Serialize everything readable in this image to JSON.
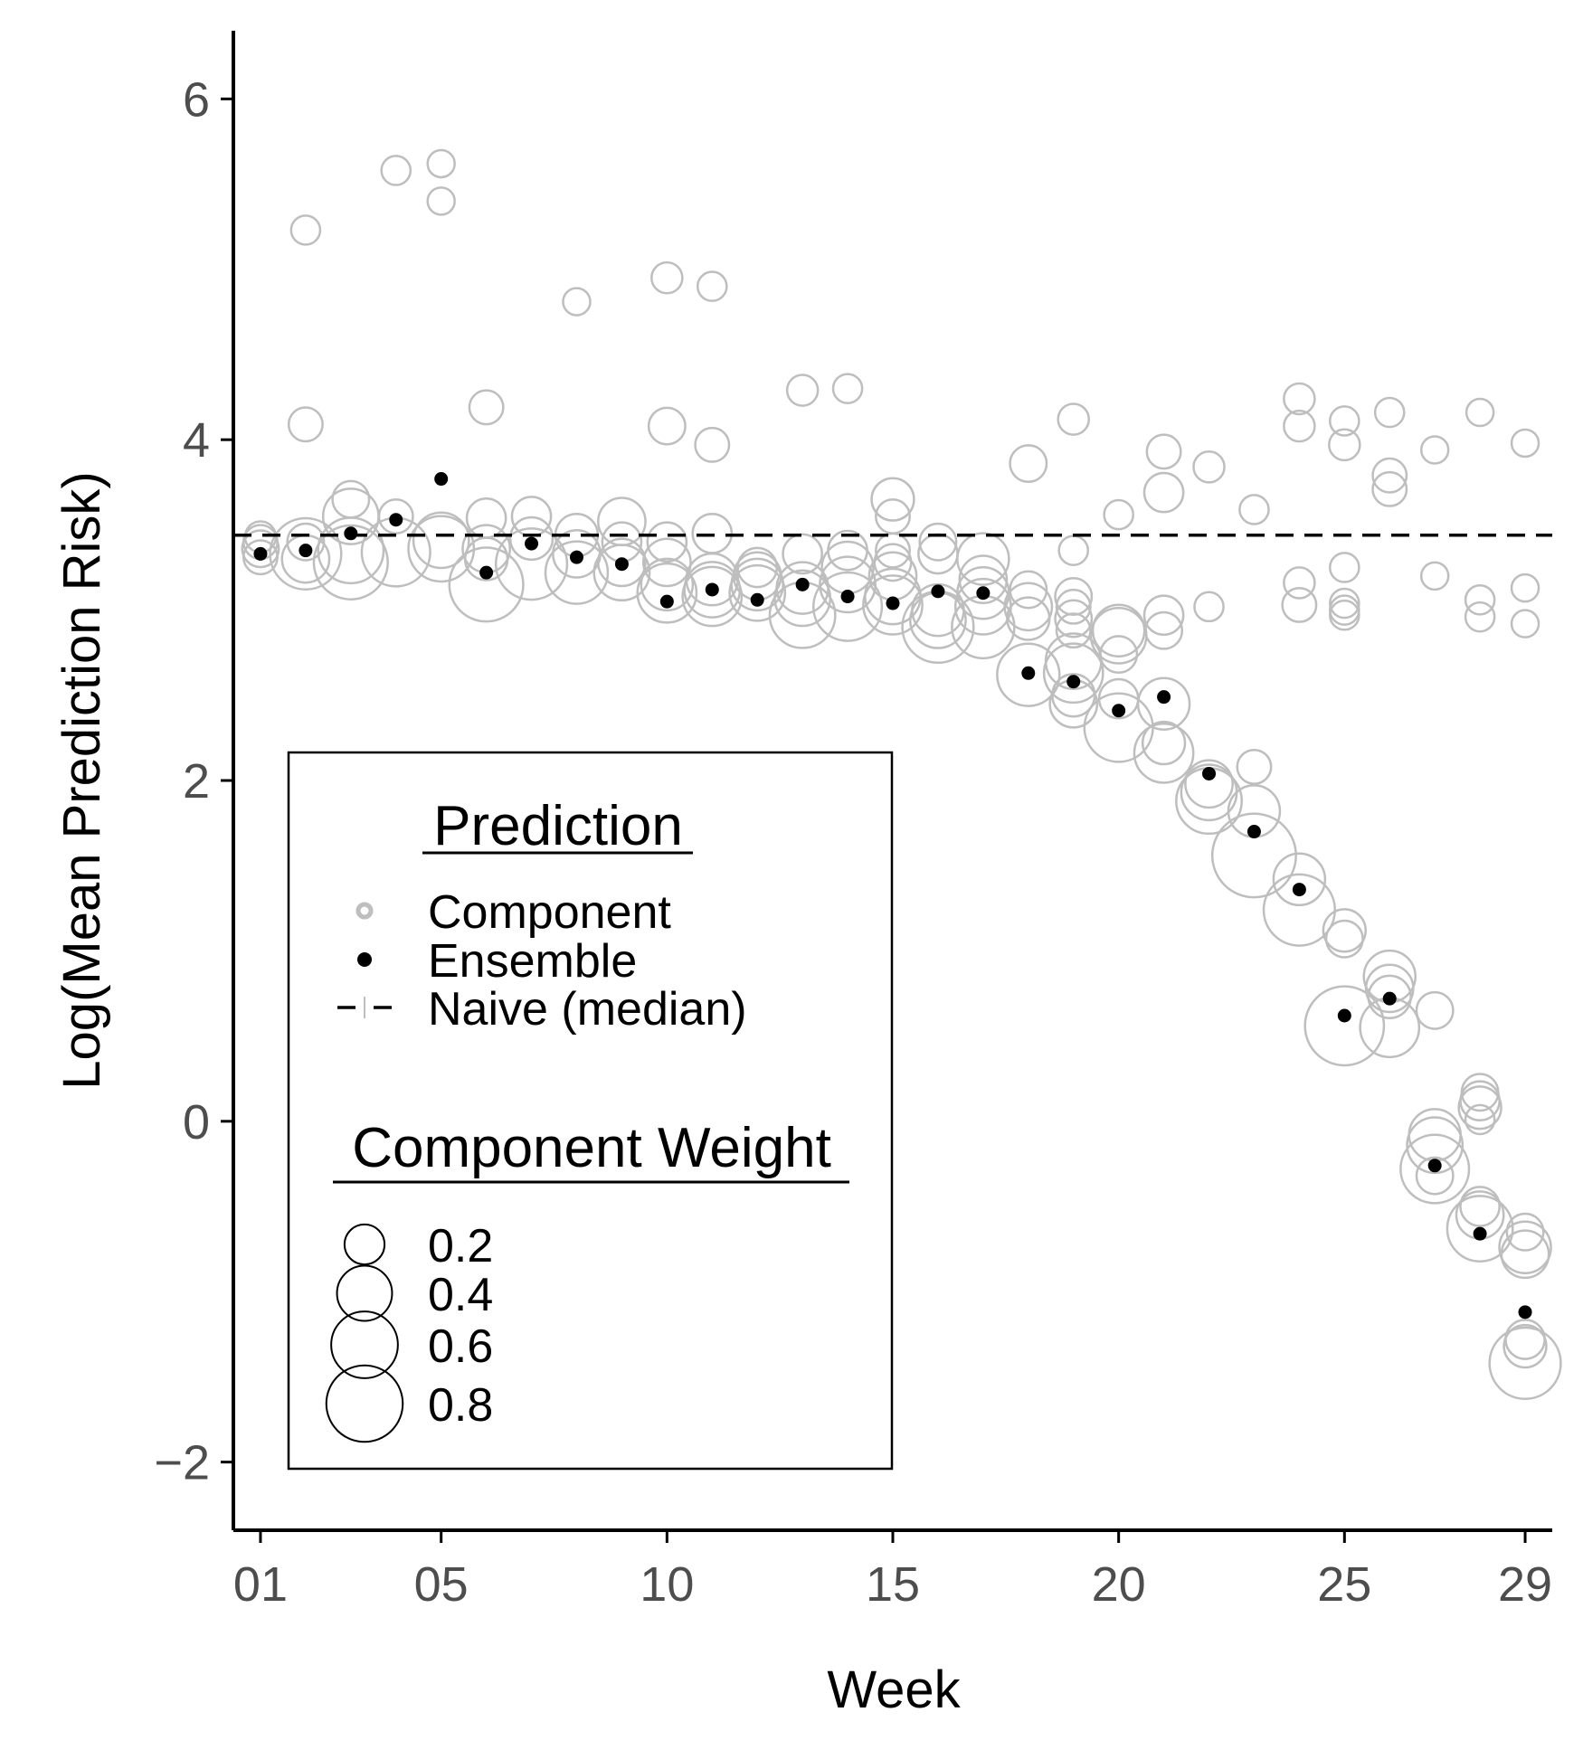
{
  "chart_data": {
    "type": "scatter",
    "xlabel": "Week",
    "ylabel": "Log(Mean Prediction Risk)",
    "xlim": [
      0.4,
      29.6
    ],
    "ylim": [
      -2.4,
      6.4
    ],
    "x_ticks": [
      {
        "value": 1,
        "label": "01"
      },
      {
        "value": 5,
        "label": "05"
      },
      {
        "value": 10,
        "label": "10"
      },
      {
        "value": 15,
        "label": "15"
      },
      {
        "value": 20,
        "label": "20"
      },
      {
        "value": 25,
        "label": "25"
      },
      {
        "value": 29,
        "label": "29"
      }
    ],
    "y_ticks": [
      {
        "value": 6,
        "label": "6"
      },
      {
        "value": 4,
        "label": "4"
      },
      {
        "value": 2,
        "label": "2"
      },
      {
        "value": 0,
        "label": "0"
      },
      {
        "value": -2,
        "label": "−2"
      }
    ],
    "grid": false,
    "colors": {
      "component": "#bebebe",
      "ensemble": "#000000",
      "naive": "#000000",
      "axis": "#000000"
    },
    "naive_median": 3.44,
    "ensemble": [
      [
        1,
        3.33
      ],
      [
        2,
        3.35
      ],
      [
        3,
        3.45
      ],
      [
        4,
        3.53
      ],
      [
        5,
        3.77
      ],
      [
        6,
        3.22
      ],
      [
        7,
        3.39
      ],
      [
        8,
        3.31
      ],
      [
        9,
        3.27
      ],
      [
        10,
        3.05
      ],
      [
        11,
        3.12
      ],
      [
        12,
        3.06
      ],
      [
        13,
        3.15
      ],
      [
        14,
        3.08
      ],
      [
        15,
        3.04
      ],
      [
        16,
        3.11
      ],
      [
        17,
        3.1
      ],
      [
        18,
        2.63
      ],
      [
        19,
        2.58
      ],
      [
        20,
        2.41
      ],
      [
        21,
        2.49
      ],
      [
        22,
        2.04
      ],
      [
        23,
        1.7
      ],
      [
        24,
        1.36
      ],
      [
        25,
        0.62
      ],
      [
        26,
        0.72
      ],
      [
        27,
        -0.26
      ],
      [
        28,
        -0.66
      ],
      [
        29,
        -1.12
      ]
    ],
    "components": [
      {
        "x": 1,
        "y": 3.43,
        "w": 0.06
      },
      {
        "x": 1,
        "y": 3.4,
        "w": 0.08
      },
      {
        "x": 1,
        "y": 3.36,
        "w": 0.1
      },
      {
        "x": 1,
        "y": 3.31,
        "w": 0.08
      },
      {
        "x": 2,
        "y": 5.23,
        "w": 0.05
      },
      {
        "x": 2,
        "y": 4.09,
        "w": 0.08
      },
      {
        "x": 2,
        "y": 3.4,
        "w": 0.1
      },
      {
        "x": 2,
        "y": 3.33,
        "w": 0.55
      },
      {
        "x": 2,
        "y": 3.3,
        "w": 0.2
      },
      {
        "x": 3,
        "y": 3.65,
        "w": 0.1
      },
      {
        "x": 3,
        "y": 3.55,
        "w": 0.3
      },
      {
        "x": 3,
        "y": 3.35,
        "w": 0.45
      },
      {
        "x": 3,
        "y": 3.28,
        "w": 0.6
      },
      {
        "x": 4,
        "y": 5.58,
        "w": 0.05
      },
      {
        "x": 4,
        "y": 3.55,
        "w": 0.08
      },
      {
        "x": 4,
        "y": 3.34,
        "w": 0.5
      },
      {
        "x": 5,
        "y": 5.62,
        "w": 0.04
      },
      {
        "x": 5,
        "y": 5.4,
        "w": 0.04
      },
      {
        "x": 5,
        "y": 3.41,
        "w": 0.3
      },
      {
        "x": 5,
        "y": 3.36,
        "w": 0.45
      },
      {
        "x": 6,
        "y": 4.19,
        "w": 0.08
      },
      {
        "x": 6,
        "y": 3.54,
        "w": 0.12
      },
      {
        "x": 6,
        "y": 3.36,
        "w": 0.2
      },
      {
        "x": 6,
        "y": 3.3,
        "w": 0.15
      },
      {
        "x": 6,
        "y": 3.15,
        "w": 0.6
      },
      {
        "x": 7,
        "y": 3.55,
        "w": 0.12
      },
      {
        "x": 7,
        "y": 3.42,
        "w": 0.15
      },
      {
        "x": 7,
        "y": 3.27,
        "w": 0.55
      },
      {
        "x": 8,
        "y": 4.81,
        "w": 0.04
      },
      {
        "x": 8,
        "y": 3.44,
        "w": 0.15
      },
      {
        "x": 8,
        "y": 3.33,
        "w": 0.2
      },
      {
        "x": 8,
        "y": 3.22,
        "w": 0.4
      },
      {
        "x": 9,
        "y": 3.52,
        "w": 0.2
      },
      {
        "x": 9,
        "y": 3.4,
        "w": 0.12
      },
      {
        "x": 9,
        "y": 3.28,
        "w": 0.2
      },
      {
        "x": 9,
        "y": 3.22,
        "w": 0.3
      },
      {
        "x": 10,
        "y": 4.95,
        "w": 0.06
      },
      {
        "x": 10,
        "y": 4.08,
        "w": 0.1
      },
      {
        "x": 10,
        "y": 3.4,
        "w": 0.12
      },
      {
        "x": 10,
        "y": 3.28,
        "w": 0.2
      },
      {
        "x": 10,
        "y": 3.15,
        "w": 0.25
      },
      {
        "x": 10,
        "y": 3.1,
        "w": 0.35
      },
      {
        "x": 11,
        "y": 4.9,
        "w": 0.05
      },
      {
        "x": 11,
        "y": 3.97,
        "w": 0.08
      },
      {
        "x": 11,
        "y": 3.45,
        "w": 0.12
      },
      {
        "x": 11,
        "y": 3.18,
        "w": 0.25
      },
      {
        "x": 11,
        "y": 3.12,
        "w": 0.3
      },
      {
        "x": 11,
        "y": 3.08,
        "w": 0.35
      },
      {
        "x": 12,
        "y": 3.25,
        "w": 0.12
      },
      {
        "x": 12,
        "y": 3.2,
        "w": 0.2
      },
      {
        "x": 12,
        "y": 3.15,
        "w": 0.25
      },
      {
        "x": 12,
        "y": 3.1,
        "w": 0.3
      },
      {
        "x": 13,
        "y": 4.29,
        "w": 0.06
      },
      {
        "x": 13,
        "y": 3.33,
        "w": 0.12
      },
      {
        "x": 13,
        "y": 3.13,
        "w": 0.25
      },
      {
        "x": 13,
        "y": 3.07,
        "w": 0.3
      },
      {
        "x": 13,
        "y": 2.97,
        "w": 0.45
      },
      {
        "x": 14,
        "y": 4.3,
        "w": 0.05
      },
      {
        "x": 14,
        "y": 3.35,
        "w": 0.12
      },
      {
        "x": 14,
        "y": 3.25,
        "w": 0.25
      },
      {
        "x": 14,
        "y": 3.15,
        "w": 0.3
      },
      {
        "x": 14,
        "y": 3.02,
        "w": 0.5
      },
      {
        "x": 15,
        "y": 3.65,
        "w": 0.15
      },
      {
        "x": 15,
        "y": 3.55,
        "w": 0.08
      },
      {
        "x": 15,
        "y": 3.35,
        "w": 0.08
      },
      {
        "x": 15,
        "y": 3.28,
        "w": 0.1
      },
      {
        "x": 15,
        "y": 3.2,
        "w": 0.2
      },
      {
        "x": 15,
        "y": 3.08,
        "w": 0.3
      },
      {
        "x": 15,
        "y": 3.03,
        "w": 0.35
      },
      {
        "x": 16,
        "y": 3.4,
        "w": 0.1
      },
      {
        "x": 16,
        "y": 3.33,
        "w": 0.12
      },
      {
        "x": 16,
        "y": 3.0,
        "w": 0.25
      },
      {
        "x": 16,
        "y": 2.94,
        "w": 0.3
      },
      {
        "x": 16,
        "y": 2.9,
        "w": 0.55
      },
      {
        "x": 17,
        "y": 3.3,
        "w": 0.25
      },
      {
        "x": 17,
        "y": 3.18,
        "w": 0.2
      },
      {
        "x": 17,
        "y": 3.1,
        "w": 0.25
      },
      {
        "x": 17,
        "y": 3.02,
        "w": 0.3
      },
      {
        "x": 17,
        "y": 2.9,
        "w": 0.4
      },
      {
        "x": 18,
        "y": 3.86,
        "w": 0.1
      },
      {
        "x": 18,
        "y": 3.12,
        "w": 0.1
      },
      {
        "x": 18,
        "y": 3.02,
        "w": 0.2
      },
      {
        "x": 18,
        "y": 2.95,
        "w": 0.15
      },
      {
        "x": 18,
        "y": 2.62,
        "w": 0.4
      },
      {
        "x": 19,
        "y": 4.12,
        "w": 0.06
      },
      {
        "x": 19,
        "y": 3.35,
        "w": 0.05
      },
      {
        "x": 19,
        "y": 3.08,
        "w": 0.1
      },
      {
        "x": 19,
        "y": 3.02,
        "w": 0.08
      },
      {
        "x": 19,
        "y": 2.95,
        "w": 0.1
      },
      {
        "x": 19,
        "y": 2.88,
        "w": 0.08
      },
      {
        "x": 19,
        "y": 2.7,
        "w": 0.3
      },
      {
        "x": 19,
        "y": 2.63,
        "w": 0.35
      },
      {
        "x": 19,
        "y": 2.5,
        "w": 0.15
      },
      {
        "x": 19,
        "y": 2.45,
        "w": 0.2
      },
      {
        "x": 20,
        "y": 3.56,
        "w": 0.05
      },
      {
        "x": 20,
        "y": 2.88,
        "w": 0.25
      },
      {
        "x": 20,
        "y": 2.85,
        "w": 0.3
      },
      {
        "x": 20,
        "y": 2.74,
        "w": 0.1
      },
      {
        "x": 20,
        "y": 2.48,
        "w": 0.12
      },
      {
        "x": 20,
        "y": 2.31,
        "w": 0.5
      },
      {
        "x": 21,
        "y": 3.93,
        "w": 0.08
      },
      {
        "x": 21,
        "y": 3.69,
        "w": 0.12
      },
      {
        "x": 21,
        "y": 2.97,
        "w": 0.12
      },
      {
        "x": 21,
        "y": 2.88,
        "w": 0.1
      },
      {
        "x": 21,
        "y": 2.45,
        "w": 0.25
      },
      {
        "x": 21,
        "y": 2.22,
        "w": 0.15
      },
      {
        "x": 21,
        "y": 2.16,
        "w": 0.35
      },
      {
        "x": 22,
        "y": 3.84,
        "w": 0.06
      },
      {
        "x": 22,
        "y": 3.02,
        "w": 0.05
      },
      {
        "x": 22,
        "y": 1.98,
        "w": 0.2
      },
      {
        "x": 22,
        "y": 1.93,
        "w": 0.3
      },
      {
        "x": 22,
        "y": 1.88,
        "w": 0.45
      },
      {
        "x": 23,
        "y": 3.59,
        "w": 0.05
      },
      {
        "x": 23,
        "y": 2.08,
        "w": 0.08
      },
      {
        "x": 23,
        "y": 1.82,
        "w": 0.25
      },
      {
        "x": 23,
        "y": 1.56,
        "w": 0.8
      },
      {
        "x": 24,
        "y": 4.24,
        "w": 0.06
      },
      {
        "x": 24,
        "y": 4.08,
        "w": 0.06
      },
      {
        "x": 24,
        "y": 3.16,
        "w": 0.06
      },
      {
        "x": 24,
        "y": 3.03,
        "w": 0.08
      },
      {
        "x": 24,
        "y": 1.42,
        "w": 0.25
      },
      {
        "x": 24,
        "y": 1.24,
        "w": 0.55
      },
      {
        "x": 25,
        "y": 4.11,
        "w": 0.05
      },
      {
        "x": 25,
        "y": 3.97,
        "w": 0.06
      },
      {
        "x": 25,
        "y": 3.25,
        "w": 0.05
      },
      {
        "x": 25,
        "y": 3.04,
        "w": 0.05
      },
      {
        "x": 25,
        "y": 3.0,
        "w": 0.05
      },
      {
        "x": 25,
        "y": 2.97,
        "w": 0.05
      },
      {
        "x": 25,
        "y": 1.12,
        "w": 0.15
      },
      {
        "x": 25,
        "y": 1.07,
        "w": 0.1
      },
      {
        "x": 25,
        "y": 0.56,
        "w": 0.7
      },
      {
        "x": 26,
        "y": 4.16,
        "w": 0.05
      },
      {
        "x": 26,
        "y": 3.79,
        "w": 0.08
      },
      {
        "x": 26,
        "y": 3.71,
        "w": 0.08
      },
      {
        "x": 26,
        "y": 0.85,
        "w": 0.25
      },
      {
        "x": 26,
        "y": 0.78,
        "w": 0.2
      },
      {
        "x": 26,
        "y": 0.73,
        "w": 0.15
      },
      {
        "x": 26,
        "y": 0.55,
        "w": 0.35
      },
      {
        "x": 27,
        "y": 3.94,
        "w": 0.04
      },
      {
        "x": 27,
        "y": 3.2,
        "w": 0.04
      },
      {
        "x": 27,
        "y": 0.65,
        "w": 0.1
      },
      {
        "x": 27,
        "y": -0.08,
        "w": 0.25
      },
      {
        "x": 27,
        "y": -0.14,
        "w": 0.3
      },
      {
        "x": 27,
        "y": -0.32,
        "w": 0.1
      },
      {
        "x": 27,
        "y": -0.28,
        "w": 0.5
      },
      {
        "x": 28,
        "y": 4.16,
        "w": 0.04
      },
      {
        "x": 28,
        "y": 3.06,
        "w": 0.05
      },
      {
        "x": 28,
        "y": 2.96,
        "w": 0.05
      },
      {
        "x": 28,
        "y": 0.17,
        "w": 0.1
      },
      {
        "x": 28,
        "y": 0.12,
        "w": 0.12
      },
      {
        "x": 28,
        "y": 0.08,
        "w": 0.15
      },
      {
        "x": 28,
        "y": 0.01,
        "w": 0.05
      },
      {
        "x": 28,
        "y": -0.5,
        "w": 0.12
      },
      {
        "x": 28,
        "y": -0.55,
        "w": 0.2
      },
      {
        "x": 28,
        "y": -0.63,
        "w": 0.45
      },
      {
        "x": 29,
        "y": 3.98,
        "w": 0.04
      },
      {
        "x": 29,
        "y": 3.13,
        "w": 0.04
      },
      {
        "x": 29,
        "y": 2.92,
        "w": 0.04
      },
      {
        "x": 29,
        "y": -0.65,
        "w": 0.1
      },
      {
        "x": 29,
        "y": -0.74,
        "w": 0.25
      },
      {
        "x": 29,
        "y": -0.78,
        "w": 0.2
      },
      {
        "x": 29,
        "y": -1.28,
        "w": 0.12
      },
      {
        "x": 29,
        "y": -1.32,
        "w": 0.15
      },
      {
        "x": 29,
        "y": -1.42,
        "w": 0.55
      }
    ],
    "legend": {
      "placement": "bottom-left",
      "prediction_title": "Prediction",
      "prediction_items": [
        {
          "key": "component",
          "label": "Component"
        },
        {
          "key": "ensemble",
          "label": "Ensemble"
        },
        {
          "key": "naive",
          "label": "Naive (median)"
        }
      ],
      "weight_title": "Component Weight",
      "weight_items": [
        {
          "value": 0.2,
          "label": "0.2"
        },
        {
          "value": 0.4,
          "label": "0.4"
        },
        {
          "value": 0.6,
          "label": "0.6"
        },
        {
          "value": 0.8,
          "label": "0.8"
        }
      ]
    }
  }
}
